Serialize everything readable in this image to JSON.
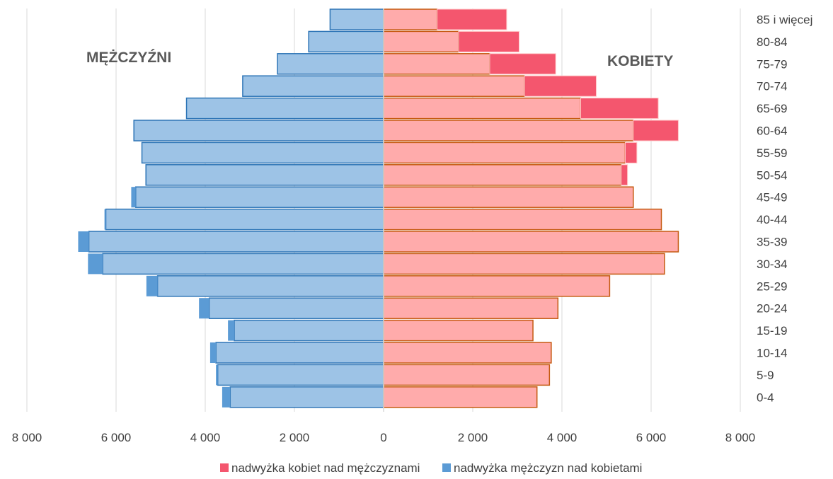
{
  "chart_data": {
    "type": "bar",
    "orientation": "horizontal",
    "subtype": "population-pyramid",
    "side_labels": {
      "left": "MĘŻCZYŹNI",
      "right": "KOBIETY"
    },
    "categories": [
      "0-4",
      "5-9",
      "10-14",
      "15-19",
      "20-24",
      "25-29",
      "30-34",
      "35-39",
      "40-44",
      "45-49",
      "50-54",
      "55-59",
      "60-64",
      "65-69",
      "70-74",
      "75-79",
      "80-84",
      "85 i więcej"
    ],
    "x_ticks": [
      "8 000",
      "6 000",
      "4 000",
      "2 000",
      "0",
      "2 000",
      "4 000",
      "6 000",
      "8 000"
    ],
    "xlim": [
      -8000,
      8000
    ],
    "series": [
      {
        "key": "men",
        "side": "left",
        "color": "#9DC3E6",
        "border": "#2E75B6",
        "values": [
          3440,
          3720,
          3760,
          3350,
          3910,
          5070,
          6300,
          6610,
          6230,
          5560,
          5330,
          5420,
          5600,
          4420,
          3160,
          2380,
          1680,
          1200
        ]
      },
      {
        "key": "women",
        "side": "right",
        "color": "#FFABAB",
        "border": "#C55A11",
        "values": [
          3440,
          3720,
          3760,
          3350,
          3910,
          5070,
          6300,
          6610,
          6230,
          5600,
          5330,
          5420,
          5600,
          4420,
          3160,
          2380,
          1680,
          1200
        ]
      },
      {
        "key": "excess_men",
        "name": "nadwyżka mężczyzn nad kobietami",
        "side": "left",
        "color": "#5B9BD5",
        "values": [
          180,
          40,
          130,
          140,
          230,
          250,
          330,
          240,
          30,
          100,
          0,
          0,
          0,
          0,
          0,
          0,
          0,
          0
        ]
      },
      {
        "key": "excess_women",
        "name": "nadwyżka kobiet nad mężczyznami",
        "side": "right",
        "color": "#F4566E",
        "values": [
          0,
          0,
          0,
          0,
          0,
          0,
          0,
          0,
          0,
          0,
          140,
          260,
          1010,
          1740,
          1610,
          1480,
          1360,
          1560
        ]
      }
    ],
    "legend": [
      {
        "label": "nadwyżka kobiet nad mężczyznami",
        "color": "#F4566E"
      },
      {
        "label": "nadwyżka mężczyzn nad kobietami",
        "color": "#5B9BD5"
      }
    ],
    "legend_position": "bottom",
    "grid": true
  }
}
